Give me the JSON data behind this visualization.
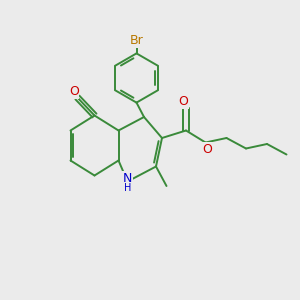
{
  "bg_color": "#ebebeb",
  "bond_color": "#3a8a3a",
  "bond_width": 1.4,
  "atom_colors": {
    "Br": "#b87800",
    "O": "#cc0000",
    "N": "#0000cc",
    "C": "#3a8a3a"
  },
  "font_size": 8.5
}
